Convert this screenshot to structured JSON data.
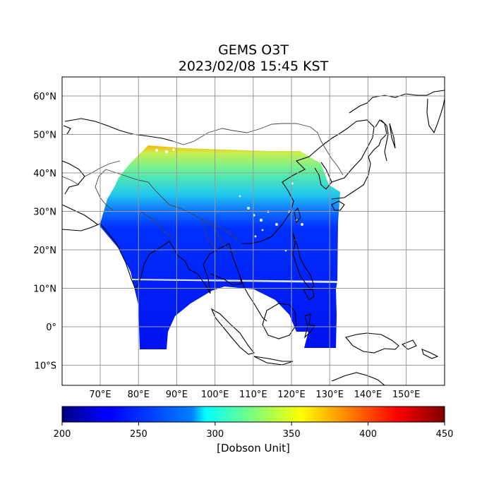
{
  "title": "GEMS O3T",
  "subtitle": "2023/02/08 15:45 KST",
  "map": {
    "lat_labels": [
      {
        "lat": 60,
        "label": "60°N"
      },
      {
        "lat": 50,
        "label": "50°N"
      },
      {
        "lat": 40,
        "label": "40°N"
      },
      {
        "lat": 30,
        "label": "30°N"
      },
      {
        "lat": 20,
        "label": "20°N"
      },
      {
        "lat": 10,
        "label": "10°N"
      },
      {
        "lat": 0,
        "label": "0°"
      },
      {
        "lat": -10,
        "label": "10°S"
      }
    ],
    "lon_labels": [
      {
        "lon": 70,
        "label": "70°E"
      },
      {
        "lon": 80,
        "label": "80°E"
      },
      {
        "lon": 90,
        "label": "90°E"
      },
      {
        "lon": 100,
        "label": "100°E"
      },
      {
        "lon": 110,
        "label": "110°E"
      },
      {
        "lon": 120,
        "label": "120°E"
      },
      {
        "lon": 130,
        "label": "130°E"
      },
      {
        "lon": 140,
        "label": "140°E"
      },
      {
        "lon": 150,
        "label": "150°E"
      }
    ],
    "lon_range": [
      60,
      160
    ],
    "lat_range": [
      -15,
      65
    ],
    "grid": true
  },
  "colorbar": {
    "min": 200,
    "max": 450,
    "ticks": [
      200,
      250,
      300,
      350,
      400,
      450
    ],
    "label": "[Dobson Unit]",
    "colormap": "jet"
  }
}
